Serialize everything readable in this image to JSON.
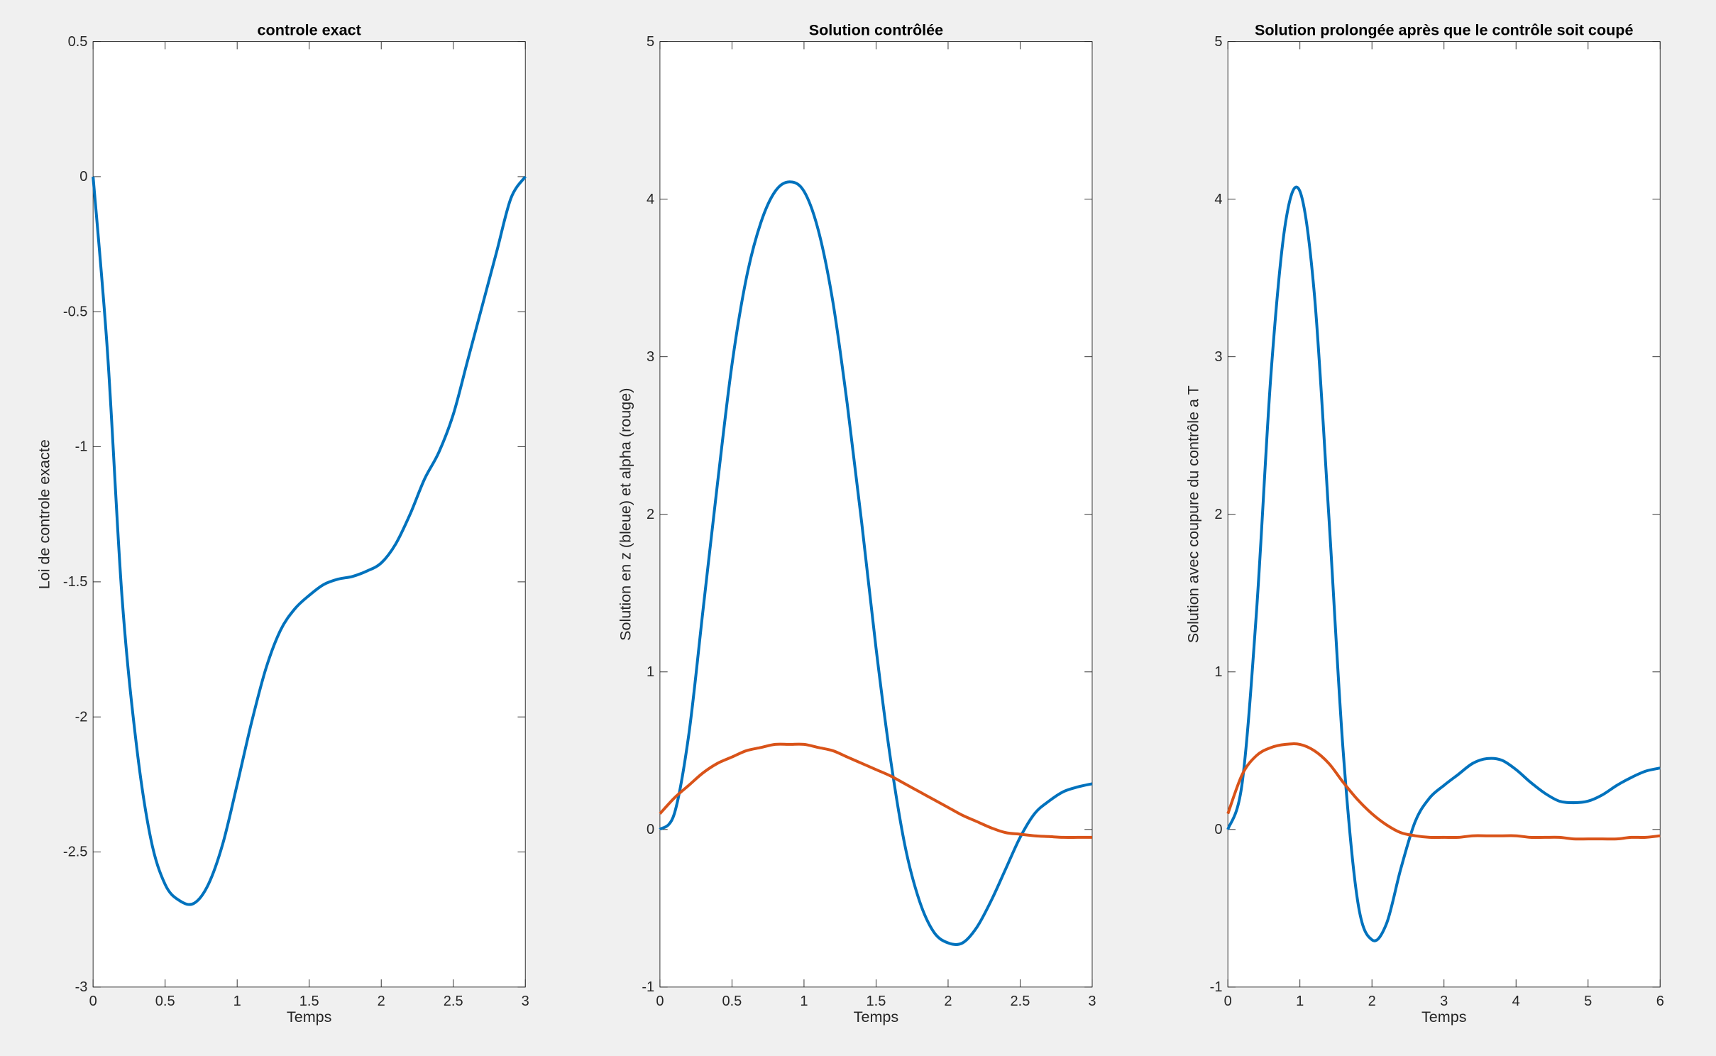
{
  "chart_data": [
    {
      "type": "line",
      "title": "controle exact",
      "x_label": "Temps",
      "y_label": "Loi de controle exacte",
      "x": [
        0,
        0.1,
        0.2,
        0.3,
        0.4,
        0.5,
        0.6,
        0.7,
        0.8,
        0.9,
        1.0,
        1.1,
        1.2,
        1.3,
        1.4,
        1.5,
        1.6,
        1.7,
        1.8,
        1.9,
        2.0,
        2.1,
        2.2,
        2.3,
        2.4,
        2.5,
        2.6,
        2.7,
        2.8,
        2.9,
        3.0
      ],
      "series": [
        {
          "color": "#0072bd",
          "values": [
            0,
            -0.65,
            -1.55,
            -2.1,
            -2.45,
            -2.62,
            -2.68,
            -2.69,
            -2.62,
            -2.47,
            -2.25,
            -2.02,
            -1.82,
            -1.68,
            -1.6,
            -1.55,
            -1.51,
            -1.49,
            -1.48,
            -1.46,
            -1.43,
            -1.36,
            -1.25,
            -1.12,
            -1.02,
            -0.88,
            -0.68,
            -0.48,
            -0.28,
            -0.08,
            0
          ]
        }
      ],
      "xlim": [
        0,
        3
      ],
      "ylim": [
        -3,
        0.5
      ],
      "xticks": [
        0,
        0.5,
        1,
        1.5,
        2,
        2.5,
        3
      ],
      "yticks": [
        -3,
        -2.5,
        -2,
        -1.5,
        -1,
        -0.5,
        0,
        0.5
      ]
    },
    {
      "type": "line",
      "title": "Solution contrôlée",
      "x_label": "Temps",
      "y_label": "Solution en z (bleue) et alpha (rouge)",
      "x": [
        0,
        0.1,
        0.2,
        0.3,
        0.4,
        0.5,
        0.6,
        0.7,
        0.8,
        0.9,
        1.0,
        1.1,
        1.2,
        1.3,
        1.4,
        1.5,
        1.6,
        1.7,
        1.8,
        1.9,
        2.0,
        2.1,
        2.2,
        2.3,
        2.4,
        2.5,
        2.6,
        2.7,
        2.8,
        2.9,
        3.0
      ],
      "series": [
        {
          "color": "#0072bd",
          "values": [
            0,
            0.1,
            0.6,
            1.4,
            2.2,
            2.95,
            3.5,
            3.85,
            4.05,
            4.11,
            4.05,
            3.8,
            3.35,
            2.7,
            1.95,
            1.15,
            0.45,
            -0.1,
            -0.45,
            -0.65,
            -0.72,
            -0.72,
            -0.62,
            -0.45,
            -0.25,
            -0.05,
            0.1,
            0.18,
            0.24,
            0.27,
            0.29
          ]
        },
        {
          "color": "#d95319",
          "values": [
            0.1,
            0.2,
            0.28,
            0.36,
            0.42,
            0.46,
            0.5,
            0.52,
            0.54,
            0.54,
            0.54,
            0.52,
            0.5,
            0.46,
            0.42,
            0.38,
            0.34,
            0.29,
            0.24,
            0.19,
            0.14,
            0.09,
            0.05,
            0.01,
            -0.02,
            -0.03,
            -0.04,
            -0.045,
            -0.05,
            -0.05,
            -0.05
          ]
        }
      ],
      "xlim": [
        0,
        3
      ],
      "ylim": [
        -1,
        5
      ],
      "xticks": [
        0,
        0.5,
        1,
        1.5,
        2,
        2.5,
        3
      ],
      "yticks": [
        -1,
        0,
        1,
        2,
        3,
        4,
        5
      ]
    },
    {
      "type": "line",
      "title": "Solution prolongée après que le contrôle soit coupé",
      "x_label": "Temps",
      "y_label": "Solution avec coupure du contrôle a T",
      "x": [
        0,
        0.2,
        0.4,
        0.6,
        0.8,
        1.0,
        1.2,
        1.4,
        1.6,
        1.8,
        2.0,
        2.2,
        2.4,
        2.6,
        2.8,
        3.0,
        3.2,
        3.4,
        3.6,
        3.8,
        4.0,
        4.2,
        4.4,
        4.6,
        4.8,
        5.0,
        5.2,
        5.4,
        5.6,
        5.8,
        6.0
      ],
      "series": [
        {
          "color": "#0072bd",
          "values": [
            0,
            0.3,
            1.4,
            2.9,
            3.85,
            4.05,
            3.4,
            2.0,
            0.5,
            -0.45,
            -0.7,
            -0.6,
            -0.25,
            0.05,
            0.2,
            0.28,
            0.35,
            0.42,
            0.45,
            0.44,
            0.38,
            0.3,
            0.23,
            0.18,
            0.17,
            0.18,
            0.22,
            0.28,
            0.33,
            0.37,
            0.39
          ]
        },
        {
          "color": "#d95319",
          "values": [
            0.1,
            0.35,
            0.47,
            0.52,
            0.54,
            0.54,
            0.5,
            0.42,
            0.3,
            0.19,
            0.1,
            0.03,
            -0.02,
            -0.04,
            -0.05,
            -0.05,
            -0.05,
            -0.04,
            -0.04,
            -0.04,
            -0.04,
            -0.05,
            -0.05,
            -0.05,
            -0.06,
            -0.06,
            -0.06,
            -0.06,
            -0.05,
            -0.05,
            -0.04
          ]
        }
      ],
      "xlim": [
        0,
        6
      ],
      "ylim": [
        -1,
        5
      ],
      "xticks": [
        0,
        1,
        2,
        3,
        4,
        5,
        6
      ],
      "yticks": [
        -1,
        0,
        1,
        2,
        3,
        4,
        5
      ]
    }
  ]
}
